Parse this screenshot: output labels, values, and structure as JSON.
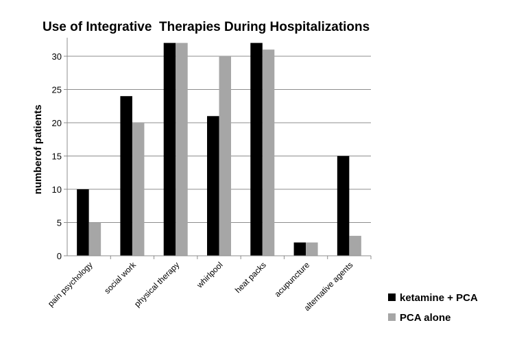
{
  "chart_data": {
    "type": "bar",
    "title": "Use of Integrative  Therapies During Hospitalizations",
    "xlabel": "",
    "ylabel": "numberof patients",
    "ylim": [
      0,
      33
    ],
    "yticks": [
      0,
      5,
      10,
      15,
      20,
      25,
      30
    ],
    "grid": true,
    "legend": "bottom-right",
    "categories": [
      "pain psychology",
      "social work",
      "physical therapy",
      "whirlpool",
      "heat packs",
      "acupuncture",
      "alternative agents"
    ],
    "series": [
      {
        "name": "ketamine + PCA",
        "color": "#000000",
        "values": [
          10,
          24,
          32,
          21,
          32,
          2,
          15
        ]
      },
      {
        "name": "PCA alone",
        "color": "#a6a6a6",
        "values": [
          5,
          20,
          32,
          30,
          31,
          2,
          3
        ]
      }
    ]
  }
}
